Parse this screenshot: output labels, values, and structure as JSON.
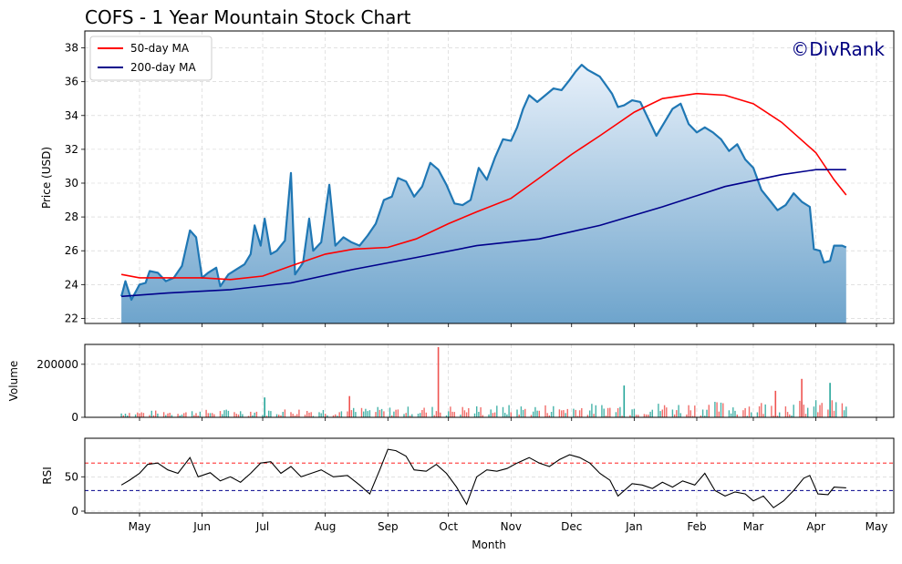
{
  "chart_data": {
    "type": "line",
    "title": "COFS - 1 Year Mountain Stock Chart",
    "watermark": "©DivRank",
    "xlabel": "Month",
    "x_ticks": [
      "May",
      "Jun",
      "Jul",
      "Aug",
      "Sep",
      "Oct",
      "Nov",
      "Dec",
      "Jan",
      "Feb",
      "Mar",
      "Apr",
      "May"
    ],
    "price_panel": {
      "ylabel": "Price (USD)",
      "ylim": [
        21.7,
        39
      ],
      "yticks": [
        22,
        24,
        26,
        28,
        30,
        32,
        34,
        36,
        38
      ],
      "grid": true,
      "legend": {
        "placement": "top-left",
        "entries": [
          "50-day MA",
          "200-day MA"
        ]
      },
      "series": [
        {
          "name": "price",
          "color": "#1f77b4",
          "fill": "mountain gradient",
          "points": [
            [
              "2024-04-22",
              23.3
            ],
            [
              "2024-04-24",
              24.2
            ],
            [
              "2024-04-27",
              23.1
            ],
            [
              "2024-05-01",
              24.0
            ],
            [
              "2024-05-04",
              24.1
            ],
            [
              "2024-05-06",
              24.8
            ],
            [
              "2024-05-10",
              24.7
            ],
            [
              "2024-05-14",
              24.2
            ],
            [
              "2024-05-18",
              24.4
            ],
            [
              "2024-05-22",
              25.1
            ],
            [
              "2024-05-26",
              27.2
            ],
            [
              "2024-05-29",
              26.8
            ],
            [
              "2024-06-01",
              24.4
            ],
            [
              "2024-06-04",
              24.7
            ],
            [
              "2024-06-08",
              25.0
            ],
            [
              "2024-06-10",
              23.9
            ],
            [
              "2024-06-14",
              24.6
            ],
            [
              "2024-06-18",
              24.9
            ],
            [
              "2024-06-22",
              25.2
            ],
            [
              "2024-06-25",
              25.8
            ],
            [
              "2024-06-27",
              27.5
            ],
            [
              "2024-06-30",
              26.3
            ],
            [
              "2024-07-02",
              27.9
            ],
            [
              "2024-07-05",
              25.8
            ],
            [
              "2024-07-08",
              26.0
            ],
            [
              "2024-07-12",
              26.6
            ],
            [
              "2024-07-15",
              30.6
            ],
            [
              "2024-07-17",
              24.6
            ],
            [
              "2024-07-21",
              25.3
            ],
            [
              "2024-07-24",
              27.9
            ],
            [
              "2024-07-26",
              26.0
            ],
            [
              "2024-07-30",
              26.5
            ],
            [
              "2024-08-03",
              29.9
            ],
            [
              "2024-08-06",
              26.3
            ],
            [
              "2024-08-10",
              26.8
            ],
            [
              "2024-08-14",
              26.5
            ],
            [
              "2024-08-18",
              26.3
            ],
            [
              "2024-08-22",
              26.9
            ],
            [
              "2024-08-26",
              27.6
            ],
            [
              "2024-08-30",
              29.0
            ],
            [
              "2024-09-03",
              29.2
            ],
            [
              "2024-09-06",
              30.3
            ],
            [
              "2024-09-10",
              30.1
            ],
            [
              "2024-09-14",
              29.2
            ],
            [
              "2024-09-18",
              29.8
            ],
            [
              "2024-09-22",
              31.2
            ],
            [
              "2024-09-26",
              30.8
            ],
            [
              "2024-09-30",
              29.9
            ],
            [
              "2024-10-04",
              28.8
            ],
            [
              "2024-10-08",
              28.7
            ],
            [
              "2024-10-12",
              29.0
            ],
            [
              "2024-10-16",
              30.9
            ],
            [
              "2024-10-20",
              30.2
            ],
            [
              "2024-10-24",
              31.5
            ],
            [
              "2024-10-28",
              32.6
            ],
            [
              "2024-11-01",
              32.5
            ],
            [
              "2024-11-04",
              33.3
            ],
            [
              "2024-11-07",
              34.4
            ],
            [
              "2024-11-10",
              35.2
            ],
            [
              "2024-11-14",
              34.8
            ],
            [
              "2024-11-18",
              35.2
            ],
            [
              "2024-11-22",
              35.6
            ],
            [
              "2024-11-26",
              35.5
            ],
            [
              "2024-11-30",
              36.1
            ],
            [
              "2024-12-03",
              36.6
            ],
            [
              "2024-12-06",
              37.0
            ],
            [
              "2024-12-09",
              36.7
            ],
            [
              "2024-12-12",
              36.5
            ],
            [
              "2024-12-15",
              36.3
            ],
            [
              "2024-12-18",
              35.8
            ],
            [
              "2024-12-21",
              35.3
            ],
            [
              "2024-12-24",
              34.5
            ],
            [
              "2024-12-27",
              34.6
            ],
            [
              "2024-12-31",
              34.9
            ],
            [
              "2025-01-04",
              34.8
            ],
            [
              "2025-01-08",
              33.8
            ],
            [
              "2025-01-12",
              32.8
            ],
            [
              "2025-01-16",
              33.6
            ],
            [
              "2025-01-20",
              34.4
            ],
            [
              "2025-01-24",
              34.7
            ],
            [
              "2025-01-28",
              33.5
            ],
            [
              "2025-02-01",
              33.0
            ],
            [
              "2025-02-05",
              33.3
            ],
            [
              "2025-02-09",
              33.0
            ],
            [
              "2025-02-13",
              32.6
            ],
            [
              "2025-02-17",
              31.9
            ],
            [
              "2025-02-21",
              32.3
            ],
            [
              "2025-02-25",
              31.4
            ],
            [
              "2025-03-01",
              30.9
            ],
            [
              "2025-03-05",
              29.6
            ],
            [
              "2025-03-09",
              29.0
            ],
            [
              "2025-03-13",
              28.4
            ],
            [
              "2025-03-17",
              28.7
            ],
            [
              "2025-03-21",
              29.4
            ],
            [
              "2025-03-25",
              28.9
            ],
            [
              "2025-03-29",
              28.6
            ],
            [
              "2025-03-31",
              26.1
            ],
            [
              "2025-04-03",
              26.0
            ],
            [
              "2025-04-05",
              25.3
            ],
            [
              "2025-04-08",
              25.4
            ],
            [
              "2025-04-10",
              26.3
            ],
            [
              "2025-04-14",
              26.3
            ],
            [
              "2025-04-16",
              26.2
            ]
          ]
        },
        {
          "name": "50-day MA",
          "color": "#ff0000",
          "points": [
            [
              "2024-04-22",
              24.6
            ],
            [
              "2024-05-01",
              24.4
            ],
            [
              "2024-05-15",
              24.4
            ],
            [
              "2024-06-01",
              24.4
            ],
            [
              "2024-06-15",
              24.3
            ],
            [
              "2024-07-01",
              24.5
            ],
            [
              "2024-07-15",
              25.1
            ],
            [
              "2024-08-01",
              25.8
            ],
            [
              "2024-08-15",
              26.1
            ],
            [
              "2024-09-01",
              26.2
            ],
            [
              "2024-09-15",
              26.7
            ],
            [
              "2024-10-01",
              27.6
            ],
            [
              "2024-10-15",
              28.3
            ],
            [
              "2024-11-01",
              29.1
            ],
            [
              "2024-11-15",
              30.3
            ],
            [
              "2024-12-01",
              31.7
            ],
            [
              "2024-12-15",
              32.8
            ],
            [
              "2025-01-01",
              34.2
            ],
            [
              "2025-01-15",
              35.0
            ],
            [
              "2025-02-01",
              35.3
            ],
            [
              "2025-02-15",
              35.2
            ],
            [
              "2025-03-01",
              34.7
            ],
            [
              "2025-03-15",
              33.6
            ],
            [
              "2025-04-01",
              31.8
            ],
            [
              "2025-04-10",
              30.2
            ],
            [
              "2025-04-16",
              29.3
            ]
          ]
        },
        {
          "name": "200-day MA",
          "color": "#00008b",
          "points": [
            [
              "2024-04-22",
              23.3
            ],
            [
              "2024-05-15",
              23.5
            ],
            [
              "2024-06-15",
              23.7
            ],
            [
              "2024-07-15",
              24.1
            ],
            [
              "2024-08-15",
              24.9
            ],
            [
              "2024-09-15",
              25.6
            ],
            [
              "2024-10-15",
              26.3
            ],
            [
              "2024-11-15",
              26.7
            ],
            [
              "2024-12-15",
              27.5
            ],
            [
              "2025-01-15",
              28.6
            ],
            [
              "2025-02-15",
              29.8
            ],
            [
              "2025-03-15",
              30.5
            ],
            [
              "2025-04-01",
              30.8
            ],
            [
              "2025-04-16",
              30.8
            ]
          ]
        }
      ]
    },
    "volume_panel": {
      "ylabel": "Volume",
      "ylim": [
        0,
        275000
      ],
      "yticks": [
        0,
        200000
      ],
      "up_color": "#26a69a",
      "down_color": "#ef5350",
      "typical_range": [
        5000,
        60000
      ],
      "spikes": [
        [
          "2024-09-26",
          265000,
          "down"
        ],
        [
          "2024-12-27",
          120000,
          "up"
        ],
        [
          "2025-03-25",
          145000,
          "down"
        ],
        [
          "2025-04-08",
          130000,
          "up"
        ],
        [
          "2025-03-12",
          100000,
          "down"
        ],
        [
          "2024-07-02",
          75000,
          "up"
        ],
        [
          "2024-08-13",
          80000,
          "down"
        ]
      ]
    },
    "rsi_panel": {
      "ylabel": "RSI",
      "ylim": [
        0,
        100
      ],
      "yticks": [
        0,
        50
      ],
      "overbought": 70,
      "oversold": 30,
      "overbought_color": "#ff0000",
      "oversold_color": "#00008b",
      "points": [
        [
          "2024-04-22",
          38
        ],
        [
          "2024-04-26",
          45
        ],
        [
          "2024-05-01",
          55
        ],
        [
          "2024-05-05",
          68
        ],
        [
          "2024-05-10",
          70
        ],
        [
          "2024-05-15",
          60
        ],
        [
          "2024-05-20",
          55
        ],
        [
          "2024-05-26",
          78
        ],
        [
          "2024-05-30",
          50
        ],
        [
          "2024-06-05",
          56
        ],
        [
          "2024-06-10",
          44
        ],
        [
          "2024-06-15",
          50
        ],
        [
          "2024-06-20",
          42
        ],
        [
          "2024-06-25",
          55
        ],
        [
          "2024-06-30",
          70
        ],
        [
          "2024-07-05",
          72
        ],
        [
          "2024-07-10",
          55
        ],
        [
          "2024-07-15",
          65
        ],
        [
          "2024-07-20",
          50
        ],
        [
          "2024-07-25",
          55
        ],
        [
          "2024-07-30",
          60
        ],
        [
          "2024-08-05",
          50
        ],
        [
          "2024-08-12",
          52
        ],
        [
          "2024-08-18",
          38
        ],
        [
          "2024-08-23",
          25
        ],
        [
          "2024-08-28",
          60
        ],
        [
          "2024-09-01",
          90
        ],
        [
          "2024-09-05",
          88
        ],
        [
          "2024-09-10",
          80
        ],
        [
          "2024-09-14",
          60
        ],
        [
          "2024-09-20",
          58
        ],
        [
          "2024-09-25",
          68
        ],
        [
          "2024-09-30",
          55
        ],
        [
          "2024-10-05",
          35
        ],
        [
          "2024-10-10",
          10
        ],
        [
          "2024-10-15",
          50
        ],
        [
          "2024-10-20",
          60
        ],
        [
          "2024-10-25",
          58
        ],
        [
          "2024-10-30",
          62
        ],
        [
          "2024-11-04",
          70
        ],
        [
          "2024-11-10",
          78
        ],
        [
          "2024-11-15",
          70
        ],
        [
          "2024-11-20",
          65
        ],
        [
          "2024-11-25",
          75
        ],
        [
          "2024-11-30",
          82
        ],
        [
          "2024-12-05",
          78
        ],
        [
          "2024-12-10",
          70
        ],
        [
          "2024-12-15",
          55
        ],
        [
          "2024-12-20",
          45
        ],
        [
          "2024-12-24",
          22
        ],
        [
          "2024-12-31",
          40
        ],
        [
          "2025-01-05",
          38
        ],
        [
          "2025-01-10",
          33
        ],
        [
          "2025-01-15",
          42
        ],
        [
          "2025-01-20",
          35
        ],
        [
          "2025-01-25",
          44
        ],
        [
          "2025-01-31",
          38
        ],
        [
          "2025-02-05",
          55
        ],
        [
          "2025-02-10",
          30
        ],
        [
          "2025-02-15",
          22
        ],
        [
          "2025-02-20",
          28
        ],
        [
          "2025-02-25",
          25
        ],
        [
          "2025-03-01",
          15
        ],
        [
          "2025-03-06",
          22
        ],
        [
          "2025-03-11",
          5
        ],
        [
          "2025-03-16",
          15
        ],
        [
          "2025-03-21",
          30
        ],
        [
          "2025-03-26",
          48
        ],
        [
          "2025-03-29",
          52
        ],
        [
          "2025-04-02",
          25
        ],
        [
          "2025-04-07",
          24
        ],
        [
          "2025-04-10",
          35
        ],
        [
          "2025-04-16",
          34
        ]
      ]
    }
  }
}
